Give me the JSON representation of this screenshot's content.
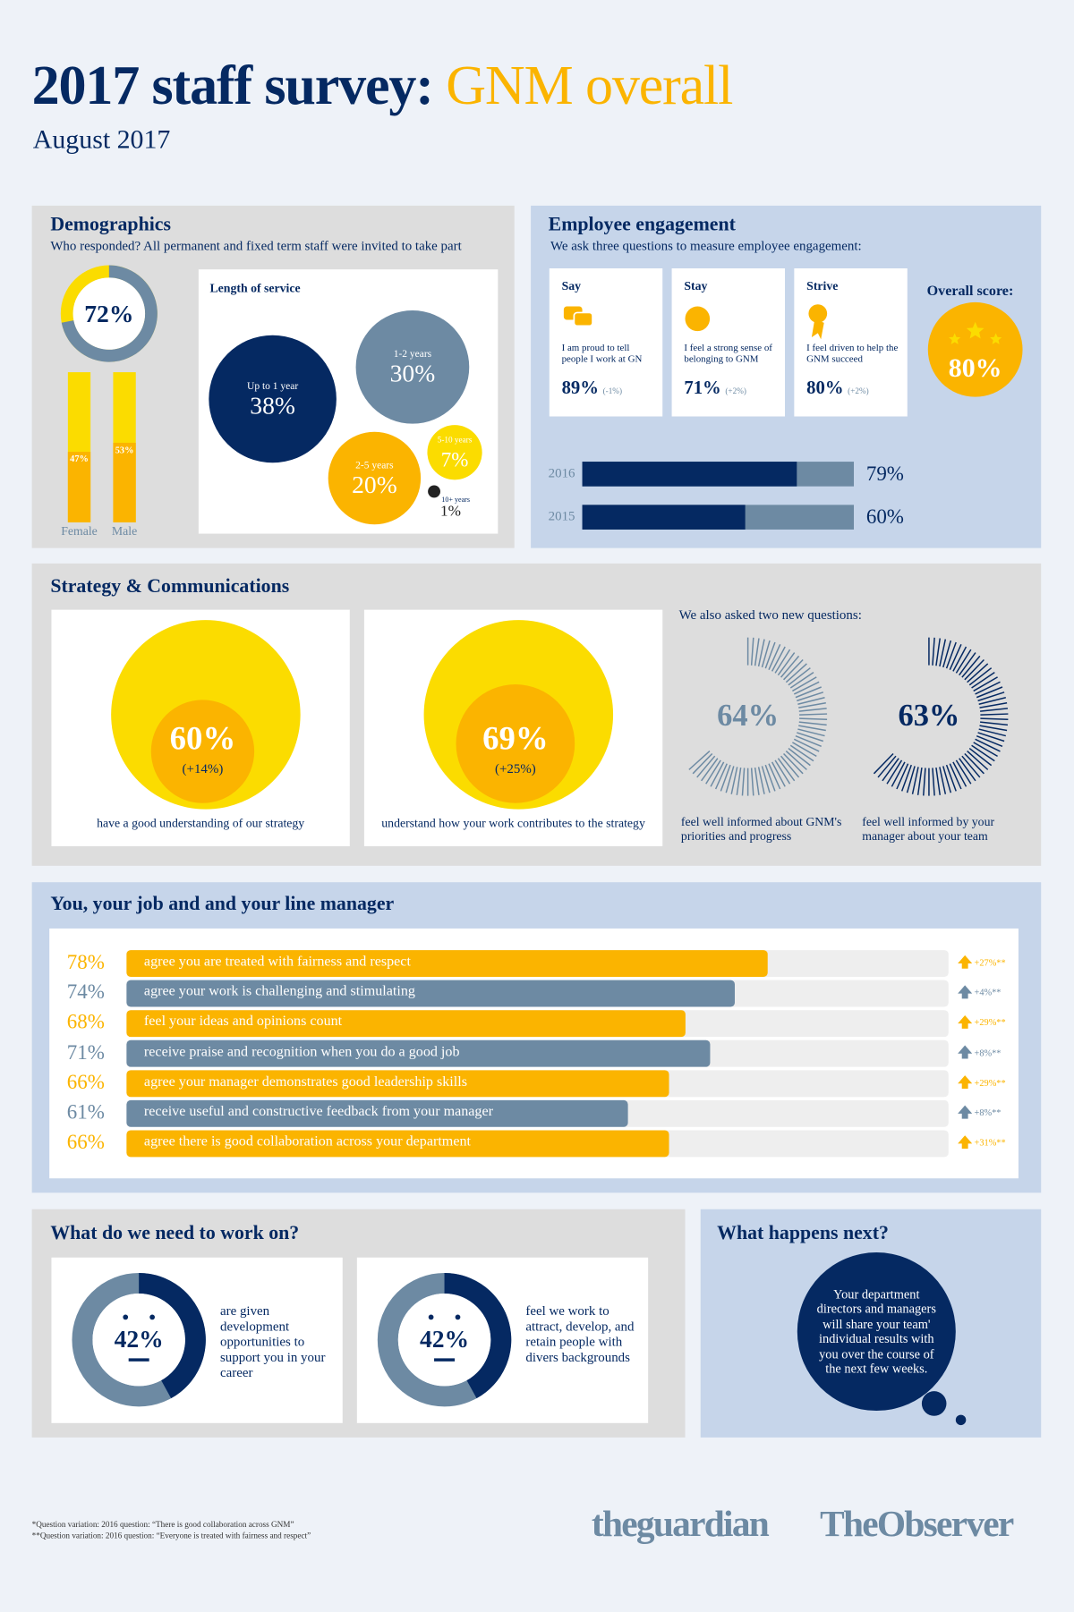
{
  "header": {
    "title": "2017 staff survey:",
    "title_highlight": "GNM overall",
    "date": "August 2017"
  },
  "demographics": {
    "title": "Demographics",
    "subtitle": "Who responded? All permanent and fixed term staff were invited to take part",
    "response_rate": {
      "value": 72,
      "label": "72%"
    },
    "gender": [
      {
        "name": "Female",
        "value": 47,
        "label": "47%"
      },
      {
        "name": "Male",
        "value": 53,
        "label": "53%"
      }
    ],
    "service_title": "Length of service",
    "service": [
      {
        "name": "Up to 1 year",
        "value": 38,
        "label": "38%"
      },
      {
        "name": "1-2 years",
        "value": 30,
        "label": "30%"
      },
      {
        "name": "2-5 years",
        "value": 20,
        "label": "20%"
      },
      {
        "name": "5-10 years",
        "value": 7,
        "label": "7%"
      },
      {
        "name": "10+ years",
        "value": 1,
        "label": "1%"
      }
    ]
  },
  "engagement": {
    "title": "Employee engagement",
    "subtitle": "We ask three questions to measure employee engagement:",
    "questions": [
      {
        "name": "Say",
        "text": "I am proud to tell people I work at GN",
        "value": 89,
        "label": "89%",
        "change": "(-1%)"
      },
      {
        "name": "Stay",
        "text": "I feel a strong sense of belonging to GNM",
        "value": 71,
        "label": "71%",
        "change": "(+2%)"
      },
      {
        "name": "Strive",
        "text": "I feel driven to help the GNM succeed",
        "value": 80,
        "label": "80%",
        "change": "(+2%)"
      }
    ],
    "overall_title": "Overall score:",
    "overall": {
      "value": 80,
      "label": "80%"
    },
    "history": [
      {
        "year": "2016",
        "value": 79,
        "label": "79%"
      },
      {
        "year": "2015",
        "value": 60,
        "label": "60%"
      }
    ]
  },
  "strategy": {
    "title": "Strategy & Communications",
    "items": [
      {
        "value": 60,
        "label": "60%",
        "change": "(+14%)",
        "text": "have a good understanding of our strategy"
      },
      {
        "value": 69,
        "label": "69%",
        "change": "(+25%)",
        "text": "understand how your work contributes to the strategy"
      }
    ],
    "new_title": "We also asked two new questions:",
    "new_items": [
      {
        "value": 64,
        "label": "64%",
        "text": "feel well informed about GNM's priorities and progress",
        "color": "#6d8aa3"
      },
      {
        "value": 63,
        "label": "63%",
        "text": "feel well informed by your manager about your team",
        "color": "#052962"
      }
    ]
  },
  "job": {
    "title": "You, your job and and your line manager",
    "items": [
      {
        "value": 78,
        "label": "78%",
        "text": "agree you are treated with fairness and respect",
        "change": "+27%**",
        "color": "#fbb400"
      },
      {
        "value": 74,
        "label": "74%",
        "text": "agree your work is challenging and stimulating",
        "change": "+4%**",
        "color": "#6d8aa3"
      },
      {
        "value": 68,
        "label": "68%",
        "text": "feel your ideas and opinions count",
        "change": "+29%**",
        "color": "#fbb400"
      },
      {
        "value": 71,
        "label": "71%",
        "text": "receive praise and recognition when you do a good job",
        "change": "+8%**",
        "color": "#6d8aa3"
      },
      {
        "value": 66,
        "label": "66%",
        "text": "agree your manager demonstrates good leadership skills",
        "change": "+29%**",
        "color": "#fbb400"
      },
      {
        "value": 61,
        "label": "61%",
        "text": "receive useful and constructive feedback from your manager",
        "change": "+8%**",
        "color": "#6d8aa3"
      },
      {
        "value": 66,
        "label": "66%",
        "text": "agree there is good collaboration across your department",
        "change": "+31%**",
        "color": "#fbb400"
      }
    ]
  },
  "work_on": {
    "title": "What do we need to work on?",
    "items": [
      {
        "value": 42,
        "label": "42%",
        "text": "are given development opportunities to support you in your career"
      },
      {
        "value": 42,
        "label": "42%",
        "text": "feel we work to attract, develop, and retain people with divers backgrounds"
      }
    ]
  },
  "next": {
    "title": "What happens next?",
    "text": "Your department directors and managers will share your team' individual results with you over the course of the next few weeks."
  },
  "footer": {
    "notes": [
      "*Question variation: 2016 question: “There is good collaboration across GNM”",
      "**Question variation: 2016 question: “Everyone is treated with fairness and respect”"
    ],
    "logos": [
      "theguardian",
      "TheObserver"
    ]
  }
}
